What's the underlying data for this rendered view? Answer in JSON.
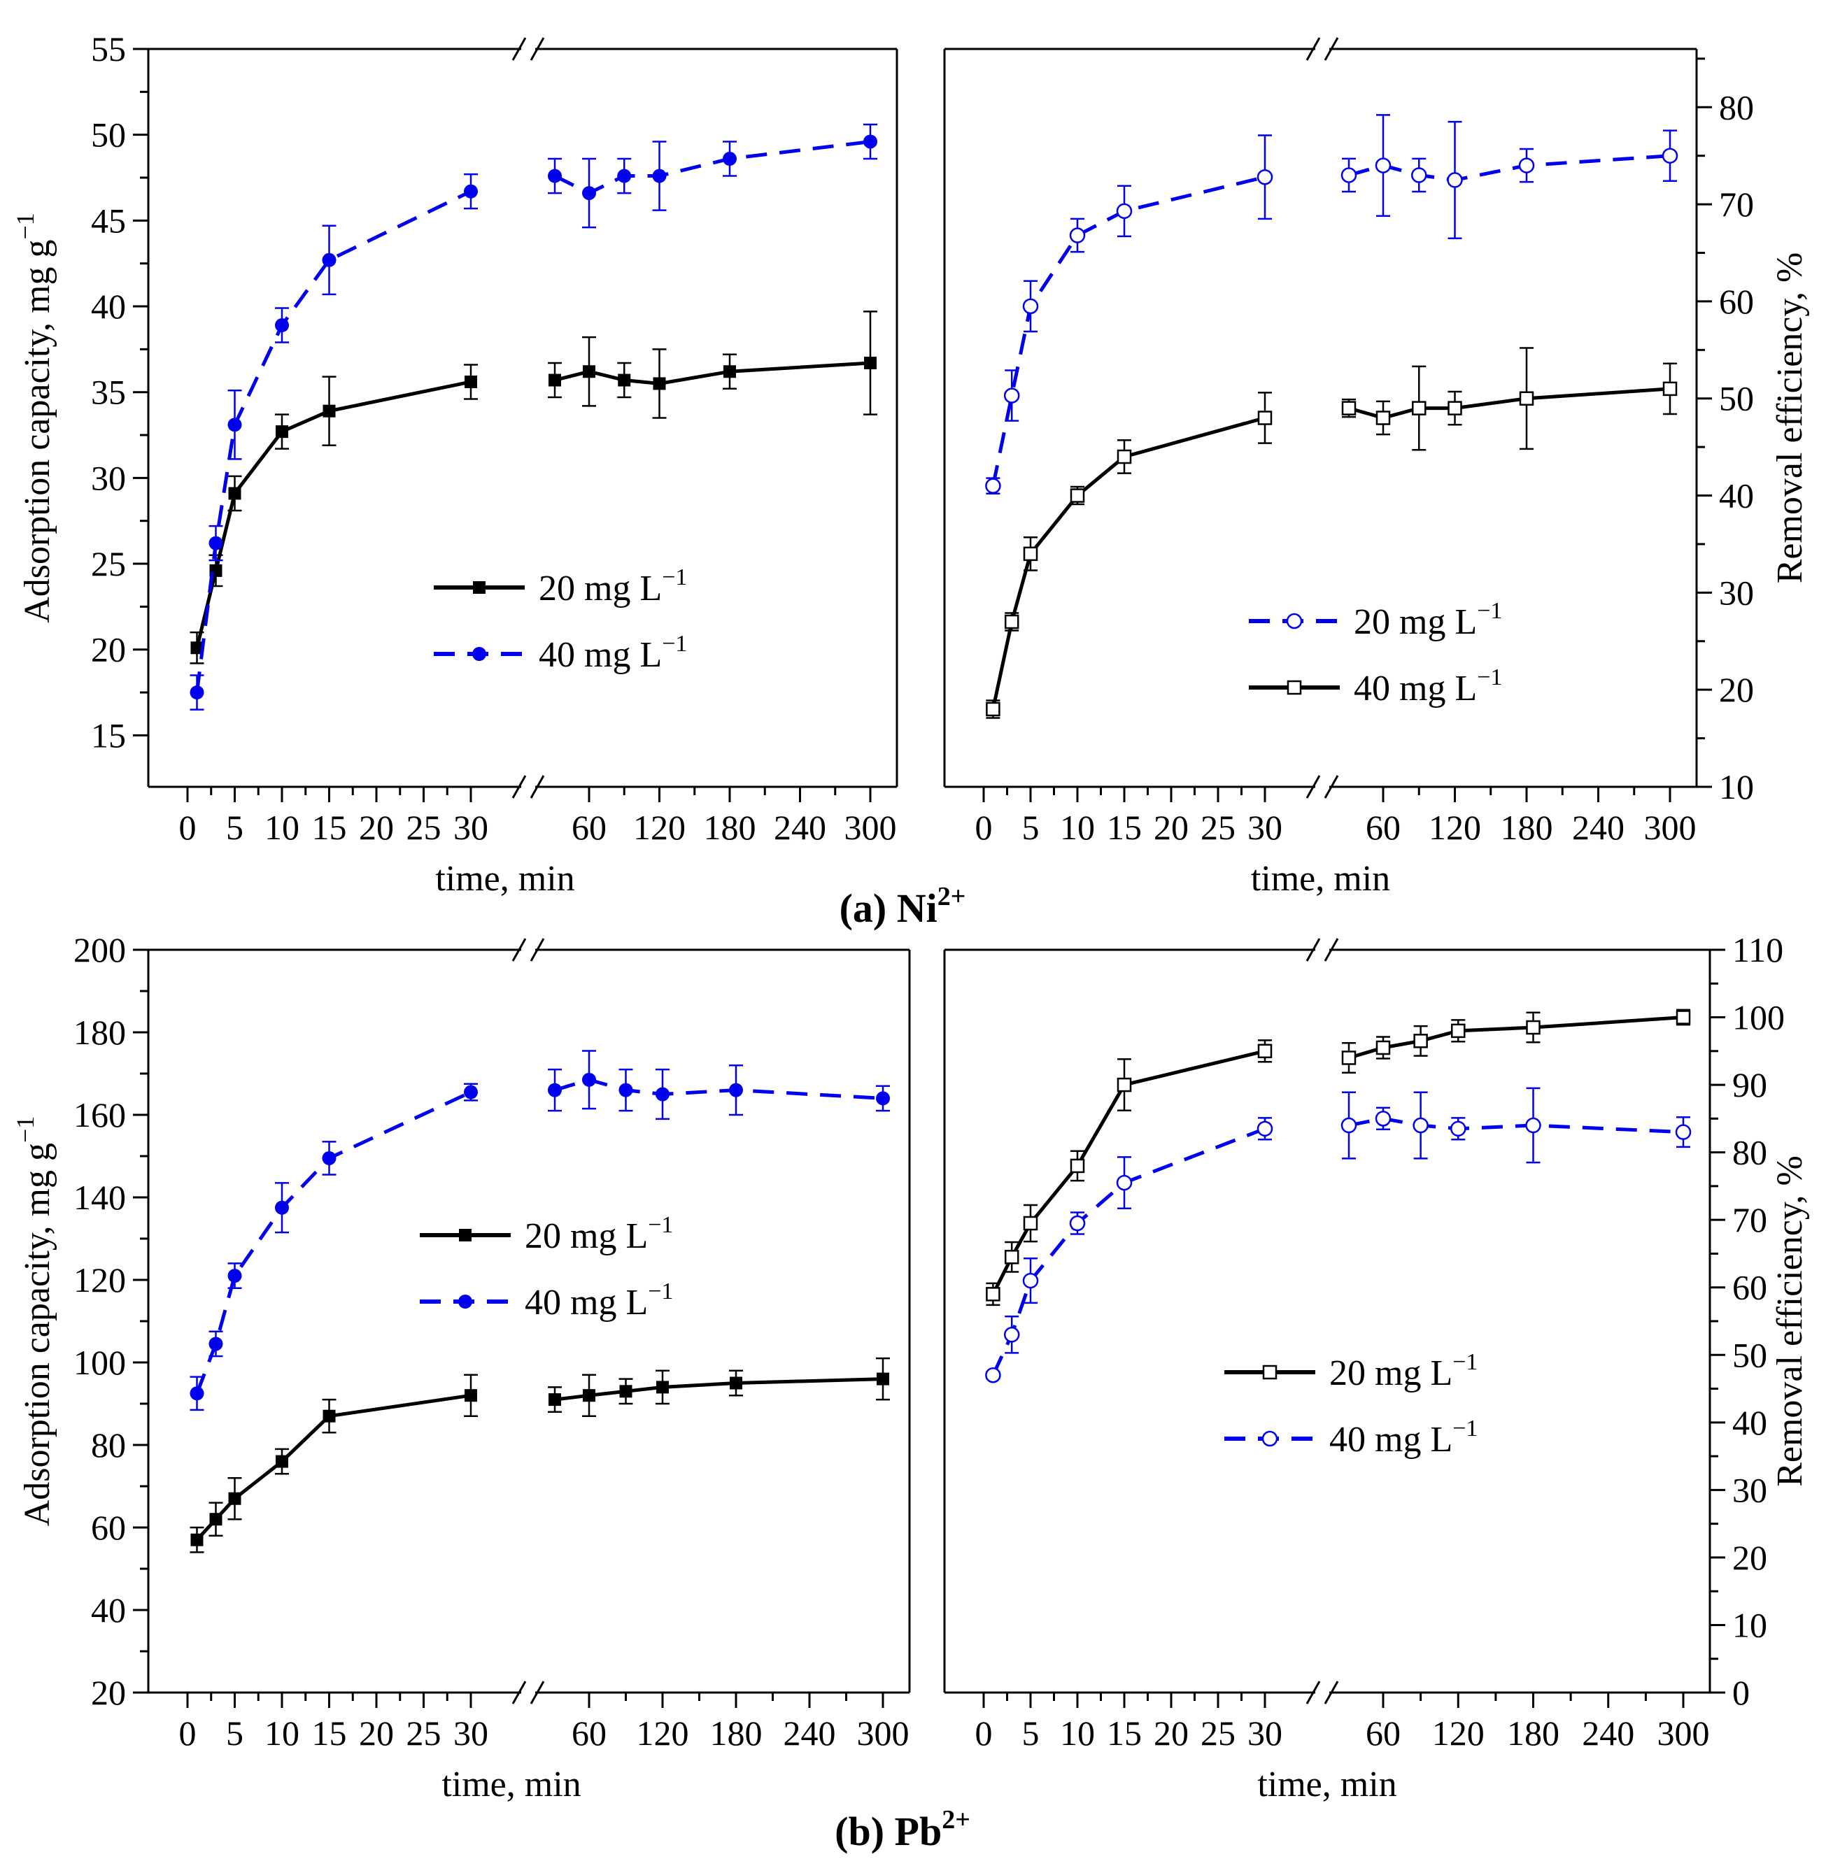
{
  "figure": {
    "caption_a": "(a) Ni",
    "caption_a_sup": "2+",
    "caption_b": "(b) Pb",
    "caption_b_sup": "2+"
  },
  "chart_data": [
    {
      "id": "ni-capacity",
      "type": "line",
      "ylabel": "Adsorption capacity, mg g",
      "ylabel_sup": "−1",
      "xlabel": "time, min",
      "ylim": [
        12,
        55
      ],
      "yticks": [
        15,
        20,
        25,
        30,
        35,
        40,
        45,
        50,
        55
      ],
      "yticks_minor": [
        17.5,
        22.5,
        27.5,
        32.5,
        37.5,
        42.5,
        47.5,
        52.5
      ],
      "y_axis_side": "left",
      "x_break": "between 30 and 60",
      "xticks_left": [
        0,
        5,
        10,
        15,
        20,
        25,
        30
      ],
      "xticks_right": [
        60,
        120,
        180,
        240,
        300
      ],
      "legend": {
        "position": "center-left"
      },
      "series": [
        {
          "name": "20 mg L",
          "name_sup": "−1",
          "color": "#000000",
          "style": "solid",
          "marker": "filled-square",
          "x": [
            1,
            3,
            5,
            10,
            15,
            30,
            45,
            60,
            90,
            120,
            180,
            300
          ],
          "y": [
            20.1,
            24.6,
            29.1,
            32.7,
            33.9,
            35.6,
            35.7,
            36.2,
            35.7,
            35.5,
            36.2,
            36.7
          ],
          "err": [
            0.9,
            0.9,
            1.0,
            1.0,
            2.0,
            1.0,
            1.0,
            2.0,
            1.0,
            2.0,
            1.0,
            3.0
          ]
        },
        {
          "name": "40 mg L",
          "name_sup": "−1",
          "color": "#0000ee",
          "style": "dashed",
          "marker": "filled-circle",
          "x": [
            1,
            3,
            5,
            10,
            15,
            30,
            45,
            60,
            90,
            120,
            180,
            300
          ],
          "y": [
            17.5,
            26.2,
            33.1,
            38.9,
            42.7,
            46.7,
            47.6,
            46.6,
            47.6,
            47.6,
            48.6,
            49.6
          ],
          "err": [
            1.0,
            1.0,
            2.0,
            1.0,
            2.0,
            1.0,
            1.0,
            2.0,
            1.0,
            2.0,
            1.0,
            1.0
          ]
        }
      ]
    },
    {
      "id": "ni-efficiency",
      "type": "line",
      "ylabel": "Removal efficiency, %",
      "xlabel": "time, min",
      "ylim": [
        10,
        86
      ],
      "yticks": [
        10,
        20,
        30,
        40,
        50,
        60,
        70,
        80
      ],
      "yticks_minor": [
        15,
        25,
        35,
        45,
        55,
        65,
        75,
        85
      ],
      "y_axis_side": "right",
      "x_break": "between 30 and 60",
      "xticks_left": [
        0,
        5,
        10,
        15,
        20,
        25,
        30
      ],
      "xticks_right": [
        60,
        120,
        180,
        240,
        300
      ],
      "legend": {
        "position": "center-right"
      },
      "series": [
        {
          "name": "20 mg L",
          "name_sup": "−1",
          "color": "#0000ee",
          "style": "dashed",
          "marker": "open-circle",
          "x": [
            1,
            3,
            5,
            10,
            15,
            30,
            45,
            60,
            90,
            120,
            180,
            300
          ],
          "y": [
            41,
            50.3,
            59.5,
            66.8,
            69.3,
            72.8,
            73.0,
            74.0,
            73.0,
            72.5,
            74.0,
            75.0
          ],
          "err": [
            0.8,
            2.6,
            2.6,
            1.7,
            2.6,
            4.3,
            1.7,
            5.2,
            1.7,
            6.0,
            1.7,
            2.6
          ]
        },
        {
          "name": "40 mg L",
          "name_sup": "−1",
          "color": "#000000",
          "style": "solid",
          "marker": "open-square",
          "x": [
            1,
            3,
            5,
            10,
            15,
            30,
            45,
            60,
            90,
            120,
            180,
            300
          ],
          "y": [
            18,
            27,
            34,
            40,
            44,
            48,
            49,
            48,
            49,
            49,
            50,
            51
          ],
          "err": [
            0.9,
            0.9,
            1.7,
            0.9,
            1.7,
            2.6,
            0.9,
            1.7,
            4.3,
            1.7,
            5.2,
            2.6
          ]
        }
      ]
    },
    {
      "id": "pb-capacity",
      "type": "line",
      "ylabel": "Adsorption capacity, mg g",
      "ylabel_sup": "−1",
      "xlabel": "time, min",
      "ylim": [
        20,
        200
      ],
      "yticks": [
        20,
        40,
        60,
        80,
        100,
        120,
        140,
        160,
        180,
        200
      ],
      "yticks_minor": [
        30,
        50,
        70,
        90,
        110,
        130,
        150,
        170,
        190
      ],
      "y_axis_side": "left",
      "x_break": "between 30 and 60",
      "xticks_left": [
        0,
        5,
        10,
        15,
        20,
        25,
        30
      ],
      "xticks_right": [
        60,
        120,
        180,
        240,
        300
      ],
      "legend": {
        "position": "center-left"
      },
      "series": [
        {
          "name": "20 mg L",
          "name_sup": "−1",
          "color": "#000000",
          "style": "solid",
          "marker": "filled-square",
          "x": [
            1,
            3,
            5,
            10,
            15,
            30,
            45,
            60,
            90,
            120,
            180,
            300
          ],
          "y": [
            57,
            62,
            67,
            76,
            87,
            92,
            91,
            92,
            93,
            94,
            95,
            96
          ],
          "err": [
            3,
            4,
            5,
            3,
            4,
            5,
            3,
            5,
            3,
            4,
            3,
            5
          ]
        },
        {
          "name": "40 mg L",
          "name_sup": "−1",
          "color": "#0000ee",
          "style": "dashed",
          "marker": "filled-circle",
          "x": [
            1,
            3,
            5,
            10,
            15,
            30,
            45,
            60,
            90,
            120,
            180,
            300
          ],
          "y": [
            92.5,
            104.5,
            121,
            137.5,
            149.5,
            165.5,
            166,
            168.5,
            166,
            165,
            166,
            164
          ],
          "err": [
            4,
            3,
            3,
            6,
            4,
            2,
            5,
            7,
            5,
            6,
            6,
            3
          ]
        }
      ]
    },
    {
      "id": "pb-efficiency",
      "type": "line",
      "ylabel": "Removal efficiency, %",
      "xlabel": "time, min",
      "ylim": [
        0,
        110
      ],
      "yticks": [
        0,
        10,
        20,
        30,
        40,
        50,
        60,
        70,
        80,
        90,
        100,
        110
      ],
      "yticks_minor": [
        5,
        15,
        25,
        35,
        45,
        55,
        65,
        75,
        85,
        95,
        105
      ],
      "y_axis_side": "right",
      "x_break": "between 30 and 60",
      "xticks_left": [
        0,
        5,
        10,
        15,
        20,
        25,
        30
      ],
      "xticks_right": [
        60,
        120,
        180,
        240,
        300
      ],
      "legend": {
        "position": "center-right"
      },
      "series": [
        {
          "name": "20 mg L",
          "name_sup": "−1",
          "color": "#000000",
          "style": "solid",
          "marker": "open-square",
          "x": [
            1,
            3,
            5,
            10,
            15,
            30,
            45,
            60,
            90,
            120,
            180,
            300
          ],
          "y": [
            59,
            64.5,
            69.5,
            78,
            90,
            95,
            94,
            95.5,
            96.5,
            98,
            98.5,
            100
          ],
          "err": [
            1.6,
            2.2,
            2.7,
            2.2,
            3.8,
            1.6,
            2.2,
            1.6,
            2.2,
            1.6,
            2.2,
            1.1
          ]
        },
        {
          "name": "40 mg L",
          "name_sup": "−1",
          "color": "#0000ee",
          "style": "dashed",
          "marker": "open-circle",
          "x": [
            1,
            3,
            5,
            10,
            15,
            30,
            45,
            60,
            90,
            120,
            180,
            300
          ],
          "y": [
            47,
            53,
            61,
            69.5,
            75.5,
            83.5,
            84,
            85,
            84,
            83.5,
            84,
            83
          ],
          "err": [
            0.5,
            2.7,
            3.3,
            1.6,
            3.8,
            1.6,
            4.9,
            1.6,
            4.9,
            1.6,
            5.5,
            2.2
          ]
        }
      ]
    }
  ]
}
